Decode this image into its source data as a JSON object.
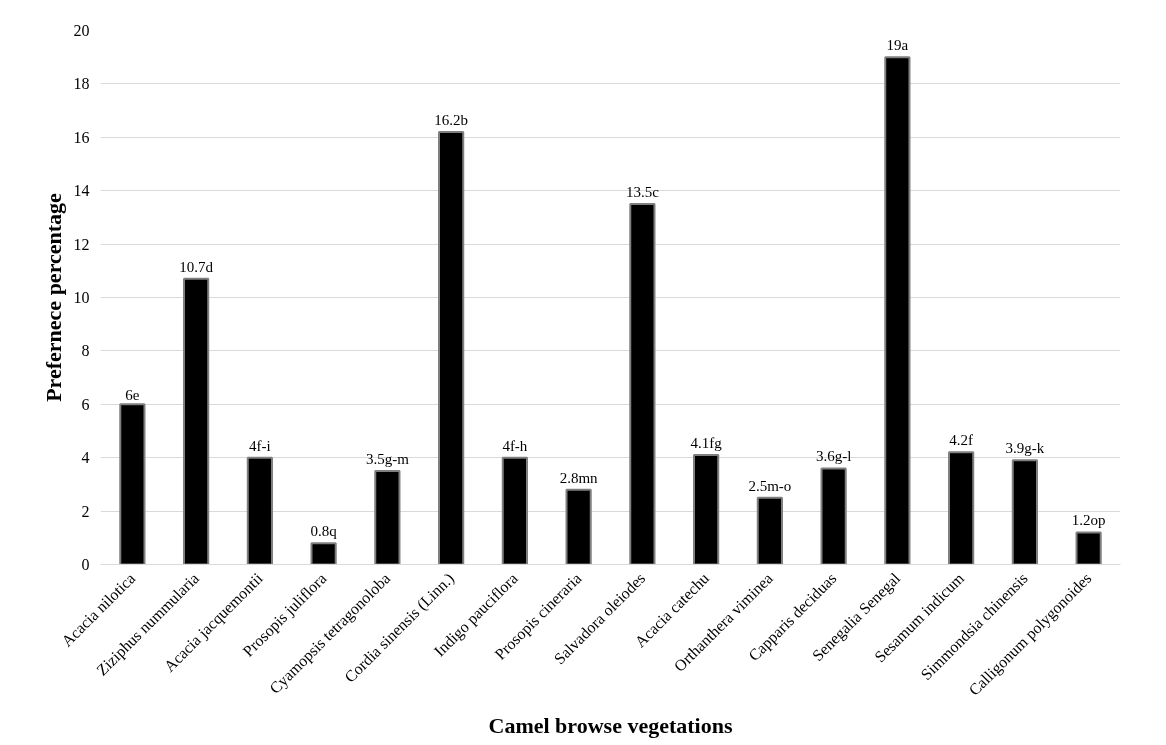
{
  "chart_data": {
    "type": "bar",
    "xlabel": "Camel browse vegetations",
    "ylabel": "Prefernece percentage",
    "categories": [
      "Acacia nilotica",
      "Ziziphus nummularia",
      "Acacia jacquemontii",
      "Prosopis juliflora",
      "Cyamopsis tetragonoloba",
      "Cordia sinensis (Linn.)",
      "Indigo pauciflora",
      "Prosopis cineraria",
      "Salvadora oleiodes",
      "Acacia catechu",
      "Orthanthera viminea",
      "Capparis deciduas",
      "Senegalia Senegal",
      "Sesamum indicum",
      "Simmondsia chinensis",
      "Calligonum polygonoides"
    ],
    "values": [
      6,
      10.7,
      4,
      0.8,
      3.5,
      16.2,
      4,
      2.8,
      13.5,
      4.1,
      2.5,
      3.6,
      19,
      4.2,
      3.9,
      1.2
    ],
    "value_labels": [
      "6e",
      "10.7d",
      "4f-i",
      "0.8q",
      "3.5g-m",
      "16.2b",
      "4f-h",
      "2.8mn",
      "13.5c",
      "4.1fg",
      "2.5m-o",
      "3.6g-l",
      "19a",
      "4.2f",
      "3.9g-k",
      "1.2op"
    ],
    "color": "#000000",
    "ylim": [
      0,
      20
    ],
    "yticks": [
      0,
      2,
      4,
      6,
      8,
      10,
      12,
      14,
      16,
      18,
      20
    ],
    "grid": "y"
  }
}
